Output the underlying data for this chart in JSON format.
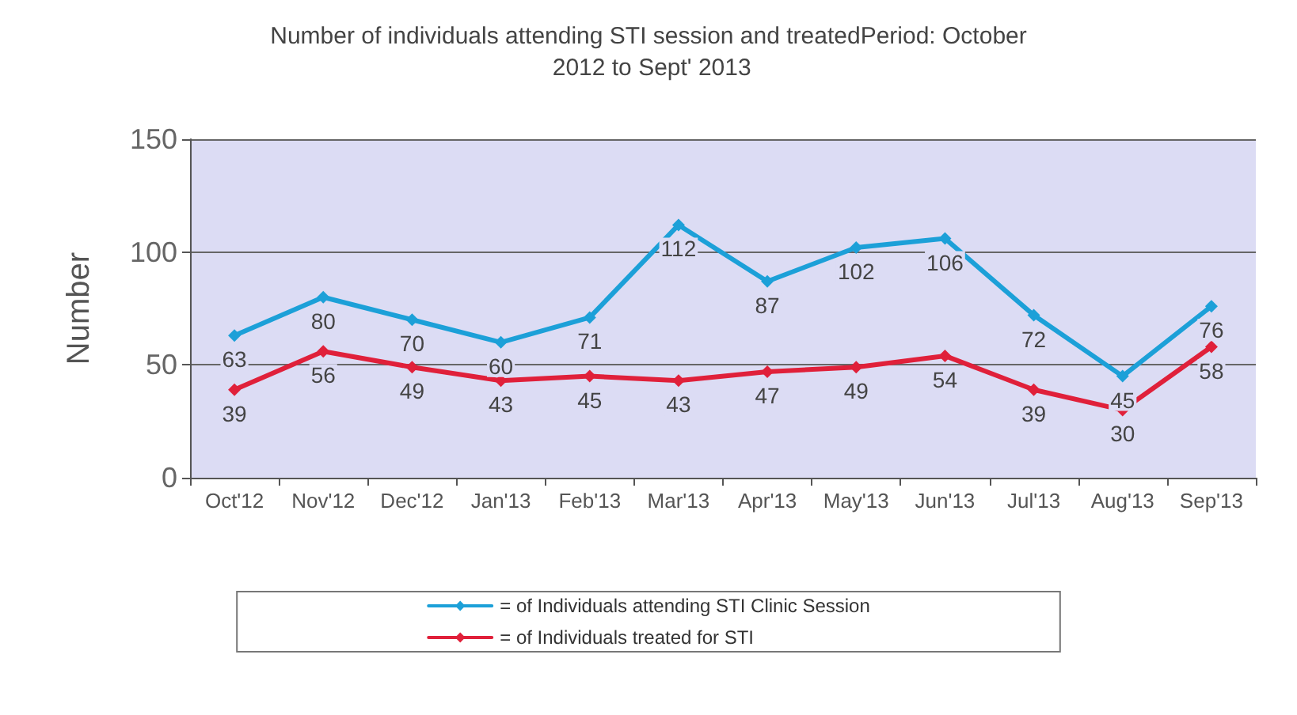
{
  "chart_data": {
    "type": "line",
    "title": "Number of individuals attending STI session and treatedPeriod: October 2012 to Sept' 2013",
    "ylabel": "Number",
    "categories": [
      "Oct'12",
      "Nov'12",
      "Dec'12",
      "Jan'13",
      "Feb'13",
      "Mar'13",
      "Apr'13",
      "May'13",
      "Jun'13",
      "Jul'13",
      "Aug'13",
      "Sep'13"
    ],
    "series": [
      {
        "name": "= of Individuals attending STI Clinic Session",
        "color": "#1ca0d8",
        "values": [
          63,
          80,
          70,
          60,
          71,
          112,
          87,
          102,
          106,
          72,
          45,
          76
        ]
      },
      {
        "name": "= of Individuals treated for STI",
        "color": "#e0203a",
        "values": [
          39,
          56,
          49,
          43,
          45,
          43,
          47,
          49,
          54,
          39,
          30,
          58
        ]
      }
    ],
    "ylim": [
      0,
      150
    ],
    "yticks": [
      0,
      50,
      100,
      150
    ],
    "grid": "y",
    "legend": "bottom",
    "marker": "diamond",
    "line_style": "solid",
    "data_labels": true
  }
}
